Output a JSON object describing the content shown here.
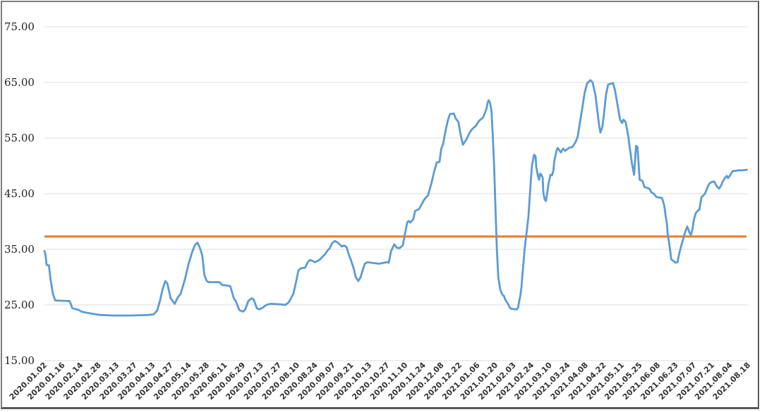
{
  "chart_data": {
    "type": "line",
    "title": "",
    "xlabel": "",
    "ylabel": "",
    "ylim": [
      15,
      75
    ],
    "y_ticks": [
      15,
      25,
      35,
      45,
      55,
      65,
      75
    ],
    "y_tick_decimals": 2,
    "grid": "horizontal",
    "gridline_color": "#dcdcdc",
    "legend_position": "none",
    "x_tick_labels": [
      "2020.01.02",
      "2020.01.16",
      "2020.02.14",
      "2020.02.28",
      "2020.03.13",
      "2020.03.27",
      "2020.04.13",
      "2020.04.27",
      "2020.05.14",
      "2020.05.28",
      "2020.06.11",
      "2020.06.29",
      "2020.07.13",
      "2020.07.27",
      "2020.08.10",
      "2020.08.24",
      "2020.09.07",
      "2020.09.21",
      "2020.10.13",
      "2020.10.27",
      "2020.11.10",
      "2020.11.24",
      "2020.12.08",
      "2020.12.22",
      "2021.01.06",
      "2021.01.20",
      "2021.02.03",
      "2021.02.24",
      "2021.03.10",
      "2021.03.24",
      "2021.04.08",
      "2021.04.22",
      "2021.05.11",
      "2021.05.25",
      "2021.06.08",
      "2021.06.23",
      "2021.07.07",
      "2021.07.21",
      "2021.08.04",
      "2021.08.18"
    ],
    "reference_line": {
      "name": "average-line",
      "value": 37.3,
      "color": "#ED7D31"
    },
    "series": [
      {
        "name": "price-line",
        "color": "#5B9BD5",
        "points": [
          [
            0.0,
            34.7
          ],
          [
            0.06,
            34.0
          ],
          [
            0.12,
            32.2
          ],
          [
            0.25,
            32.1
          ],
          [
            0.34,
            29.5
          ],
          [
            0.47,
            27.0
          ],
          [
            0.6,
            25.8
          ],
          [
            1.4,
            25.7
          ],
          [
            1.55,
            24.4
          ],
          [
            1.9,
            24.1
          ],
          [
            2.05,
            23.8
          ],
          [
            2.35,
            23.6
          ],
          [
            2.7,
            23.4
          ],
          [
            3.1,
            23.2
          ],
          [
            3.8,
            23.1
          ],
          [
            4.8,
            23.1
          ],
          [
            5.75,
            23.2
          ],
          [
            6.05,
            23.3
          ],
          [
            6.25,
            24.0
          ],
          [
            6.4,
            25.7
          ],
          [
            6.55,
            27.8
          ],
          [
            6.7,
            29.3
          ],
          [
            6.82,
            28.8
          ],
          [
            7.0,
            26.2
          ],
          [
            7.22,
            25.2
          ],
          [
            7.4,
            26.4
          ],
          [
            7.55,
            27.0
          ],
          [
            7.78,
            29.5
          ],
          [
            8.0,
            32.5
          ],
          [
            8.2,
            34.6
          ],
          [
            8.35,
            35.8
          ],
          [
            8.48,
            36.2
          ],
          [
            8.6,
            35.4
          ],
          [
            8.75,
            33.9
          ],
          [
            8.87,
            30.3
          ],
          [
            9.0,
            29.3
          ],
          [
            9.1,
            29.1
          ],
          [
            9.7,
            29.1
          ],
          [
            9.85,
            28.6
          ],
          [
            10.3,
            28.4
          ],
          [
            10.5,
            26.2
          ],
          [
            10.62,
            25.6
          ],
          [
            10.8,
            24.1
          ],
          [
            11.0,
            23.8
          ],
          [
            11.12,
            24.1
          ],
          [
            11.3,
            25.7
          ],
          [
            11.48,
            26.2
          ],
          [
            11.6,
            26.0
          ],
          [
            11.78,
            24.4
          ],
          [
            11.9,
            24.2
          ],
          [
            12.1,
            24.5
          ],
          [
            12.3,
            25.0
          ],
          [
            12.55,
            25.2
          ],
          [
            13.1,
            25.1
          ],
          [
            13.35,
            25.0
          ],
          [
            13.55,
            25.5
          ],
          [
            13.8,
            27.0
          ],
          [
            13.95,
            29.1
          ],
          [
            14.08,
            31.2
          ],
          [
            14.22,
            31.6
          ],
          [
            14.45,
            31.7
          ],
          [
            14.6,
            32.7
          ],
          [
            14.72,
            33.1
          ],
          [
            15.0,
            32.7
          ],
          [
            15.25,
            33.1
          ],
          [
            15.42,
            33.7
          ],
          [
            15.58,
            34.2
          ],
          [
            15.7,
            34.8
          ],
          [
            15.82,
            35.2
          ],
          [
            15.95,
            36.1
          ],
          [
            16.1,
            36.5
          ],
          [
            16.22,
            36.3
          ],
          [
            16.37,
            35.9
          ],
          [
            16.48,
            35.5
          ],
          [
            16.6,
            35.7
          ],
          [
            16.75,
            35.4
          ],
          [
            16.88,
            34.0
          ],
          [
            17.0,
            33.0
          ],
          [
            17.15,
            31.5
          ],
          [
            17.26,
            30.0
          ],
          [
            17.4,
            29.3
          ],
          [
            17.53,
            30.0
          ],
          [
            17.65,
            31.3
          ],
          [
            17.76,
            32.4
          ],
          [
            17.92,
            32.7
          ],
          [
            18.1,
            32.6
          ],
          [
            18.55,
            32.4
          ],
          [
            19.0,
            32.7
          ],
          [
            19.09,
            32.6
          ],
          [
            19.22,
            34.7
          ],
          [
            19.4,
            35.9
          ],
          [
            19.53,
            35.3
          ],
          [
            19.68,
            35.2
          ],
          [
            19.87,
            35.7
          ],
          [
            19.92,
            36.6
          ],
          [
            20.0,
            38.0
          ],
          [
            20.12,
            39.9
          ],
          [
            20.2,
            40.1
          ],
          [
            20.28,
            39.8
          ],
          [
            20.45,
            40.4
          ],
          [
            20.55,
            41.9
          ],
          [
            20.75,
            42.2
          ],
          [
            20.85,
            42.7
          ],
          [
            21.05,
            43.9
          ],
          [
            21.15,
            44.3
          ],
          [
            21.27,
            44.7
          ],
          [
            21.45,
            46.8
          ],
          [
            21.6,
            48.9
          ],
          [
            21.75,
            50.6
          ],
          [
            21.9,
            50.7
          ],
          [
            22.0,
            53.1
          ],
          [
            22.1,
            53.9
          ],
          [
            22.22,
            56.0
          ],
          [
            22.36,
            58.1
          ],
          [
            22.48,
            59.3
          ],
          [
            22.7,
            59.4
          ],
          [
            22.8,
            58.5
          ],
          [
            22.95,
            57.9
          ],
          [
            23.08,
            55.5
          ],
          [
            23.2,
            53.8
          ],
          [
            23.4,
            54.8
          ],
          [
            23.55,
            55.8
          ],
          [
            23.66,
            56.4
          ],
          [
            23.78,
            56.8
          ],
          [
            23.92,
            57.2
          ],
          [
            24.05,
            57.9
          ],
          [
            24.17,
            58.3
          ],
          [
            24.32,
            58.7
          ],
          [
            24.44,
            59.7
          ],
          [
            24.51,
            60.3
          ],
          [
            24.56,
            61.2
          ],
          [
            24.62,
            61.8
          ],
          [
            24.7,
            61.4
          ],
          [
            24.78,
            60.0
          ],
          [
            24.85,
            55.8
          ],
          [
            24.93,
            50.0
          ],
          [
            25.0,
            43.0
          ],
          [
            25.08,
            35.4
          ],
          [
            25.16,
            30.0
          ],
          [
            25.28,
            27.6
          ],
          [
            25.4,
            26.8
          ],
          [
            25.48,
            26.6
          ],
          [
            25.53,
            26.1
          ],
          [
            25.6,
            25.7
          ],
          [
            25.68,
            25.3
          ],
          [
            25.8,
            24.5
          ],
          [
            25.88,
            24.3
          ],
          [
            26.18,
            24.2
          ],
          [
            26.26,
            24.5
          ],
          [
            26.3,
            25.3
          ],
          [
            26.38,
            26.6
          ],
          [
            26.45,
            28.3
          ],
          [
            26.5,
            30.4
          ],
          [
            26.57,
            32.9
          ],
          [
            26.62,
            35.0
          ],
          [
            26.68,
            36.7
          ],
          [
            26.75,
            38.5
          ],
          [
            26.83,
            40.8
          ],
          [
            26.9,
            44.2
          ],
          [
            26.97,
            47.6
          ],
          [
            27.03,
            50.1
          ],
          [
            27.15,
            52.0
          ],
          [
            27.23,
            51.7
          ],
          [
            27.27,
            49.8
          ],
          [
            27.36,
            48.2
          ],
          [
            27.43,
            47.5
          ],
          [
            27.48,
            48.6
          ],
          [
            27.55,
            48.4
          ],
          [
            27.62,
            47.9
          ],
          [
            27.66,
            45.2
          ],
          [
            27.74,
            43.9
          ],
          [
            27.81,
            43.7
          ],
          [
            27.86,
            44.8
          ],
          [
            27.94,
            46.7
          ],
          [
            28.02,
            47.9
          ],
          [
            28.06,
            48.4
          ],
          [
            28.14,
            48.3
          ],
          [
            28.22,
            49.2
          ],
          [
            28.26,
            50.7
          ],
          [
            28.34,
            52.0
          ],
          [
            28.42,
            53.0
          ],
          [
            28.46,
            53.2
          ],
          [
            28.55,
            52.8
          ],
          [
            28.63,
            52.4
          ],
          [
            28.75,
            53.1
          ],
          [
            28.87,
            52.7
          ],
          [
            29.07,
            53.2
          ],
          [
            29.27,
            53.4
          ],
          [
            29.45,
            54.3
          ],
          [
            29.57,
            55.3
          ],
          [
            29.68,
            57.6
          ],
          [
            29.8,
            60.0
          ],
          [
            29.95,
            63.1
          ],
          [
            30.08,
            64.8
          ],
          [
            30.27,
            65.4
          ],
          [
            30.39,
            65.0
          ],
          [
            30.55,
            62.7
          ],
          [
            30.66,
            59.7
          ],
          [
            30.74,
            57.6
          ],
          [
            30.82,
            56.0
          ],
          [
            30.93,
            57.0
          ],
          [
            31.01,
            58.9
          ],
          [
            31.13,
            62.7
          ],
          [
            31.25,
            64.6
          ],
          [
            31.52,
            64.9
          ],
          [
            31.64,
            63.5
          ],
          [
            31.79,
            60.6
          ],
          [
            31.91,
            58.3
          ],
          [
            32.03,
            57.7
          ],
          [
            32.1,
            58.3
          ],
          [
            32.22,
            57.9
          ],
          [
            32.38,
            55.1
          ],
          [
            32.41,
            54.3
          ],
          [
            32.57,
            50.5
          ],
          [
            32.69,
            48.4
          ],
          [
            32.8,
            53.6
          ],
          [
            32.88,
            53.4
          ],
          [
            33.0,
            47.5
          ],
          [
            33.15,
            47.3
          ],
          [
            33.27,
            46.2
          ],
          [
            33.54,
            45.9
          ],
          [
            33.66,
            45.2
          ],
          [
            33.78,
            45.0
          ],
          [
            33.93,
            44.4
          ],
          [
            34.24,
            44.2
          ],
          [
            34.36,
            42.9
          ],
          [
            34.43,
            41.2
          ],
          [
            34.51,
            39.6
          ],
          [
            34.55,
            37.9
          ],
          [
            34.63,
            36.2
          ],
          [
            34.7,
            34.5
          ],
          [
            34.75,
            33.2
          ],
          [
            34.83,
            33.0
          ],
          [
            35.0,
            32.6
          ],
          [
            35.1,
            32.7
          ],
          [
            35.18,
            34.0
          ],
          [
            35.29,
            35.5
          ],
          [
            35.41,
            36.8
          ],
          [
            35.53,
            38.2
          ],
          [
            35.64,
            39.1
          ],
          [
            35.76,
            38.0
          ],
          [
            35.84,
            37.6
          ],
          [
            35.92,
            38.5
          ],
          [
            36.0,
            40.2
          ],
          [
            36.11,
            41.5
          ],
          [
            36.23,
            42.0
          ],
          [
            36.31,
            42.1
          ],
          [
            36.43,
            44.4
          ],
          [
            36.5,
            44.6
          ],
          [
            36.62,
            45.0
          ],
          [
            36.78,
            46.3
          ],
          [
            36.89,
            46.9
          ],
          [
            37.01,
            47.1
          ],
          [
            37.13,
            47.2
          ],
          [
            37.28,
            46.3
          ],
          [
            37.4,
            45.9
          ],
          [
            37.52,
            46.5
          ],
          [
            37.59,
            47.1
          ],
          [
            37.75,
            47.9
          ],
          [
            37.83,
            48.2
          ],
          [
            37.9,
            47.8
          ],
          [
            38.02,
            48.3
          ],
          [
            38.1,
            48.8
          ],
          [
            38.18,
            49.1
          ],
          [
            38.33,
            49.1
          ],
          [
            38.45,
            49.2
          ],
          [
            38.72,
            49.2
          ],
          [
            38.95,
            49.3
          ]
        ]
      }
    ]
  },
  "colors": {
    "series_blue": "#5B9BD5",
    "reference_orange": "#ED7D31",
    "gridline": "#dcdcdc",
    "y_label_text": "#1f1f1f",
    "x_label_text": "#333333",
    "frame_border": "#595959",
    "background": "#ffffff"
  }
}
